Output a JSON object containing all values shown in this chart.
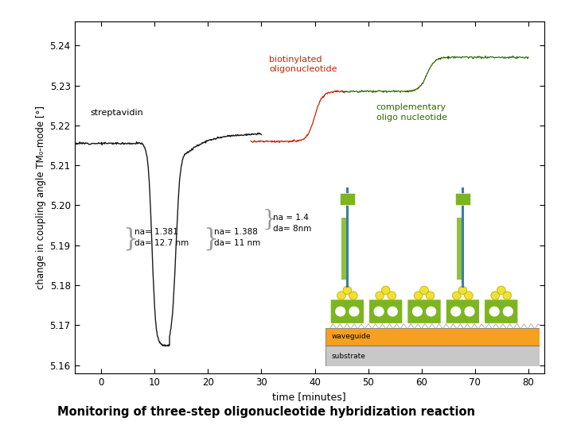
{
  "title": "Monitoring of three-step oligonucleotide hybridization reaction",
  "xlabel": "time [minutes]",
  "ylabel": "change in coupling angle TM₀-mode [°]",
  "xlim": [
    -5,
    83
  ],
  "ylim": [
    5.158,
    5.246
  ],
  "yticks": [
    5.16,
    5.17,
    5.18,
    5.19,
    5.2,
    5.21,
    5.22,
    5.23,
    5.24
  ],
  "xticks": [
    0,
    10,
    20,
    30,
    40,
    50,
    60,
    70,
    80
  ],
  "bg_color": "#ffffff",
  "plot_bg_color": "#ffffff",
  "curve_color_black": "#1a1a1a",
  "curve_color_red": "#cc2200",
  "curve_color_green": "#336600",
  "annotation_color": "#999999",
  "label_streptavidin": "streptavidin",
  "label_biotinylated": "biotinylated\noligonucleotide",
  "label_complementary": "complementary\noligo nucleotide",
  "annot1_text": "na= 1.381\nda= 12.7 nm",
  "annot2_text": "na= 1.388\nda= 11 nm",
  "annot3_text": "na = 1.4\nda= 8nm",
  "waveguide_color": "#f5a020",
  "substrate_color": "#c8c8c8",
  "oligo_color": "#7db520",
  "strand_color": "#3a7fa0",
  "bead_color": "#f0e030",
  "frame_color": "#000000"
}
